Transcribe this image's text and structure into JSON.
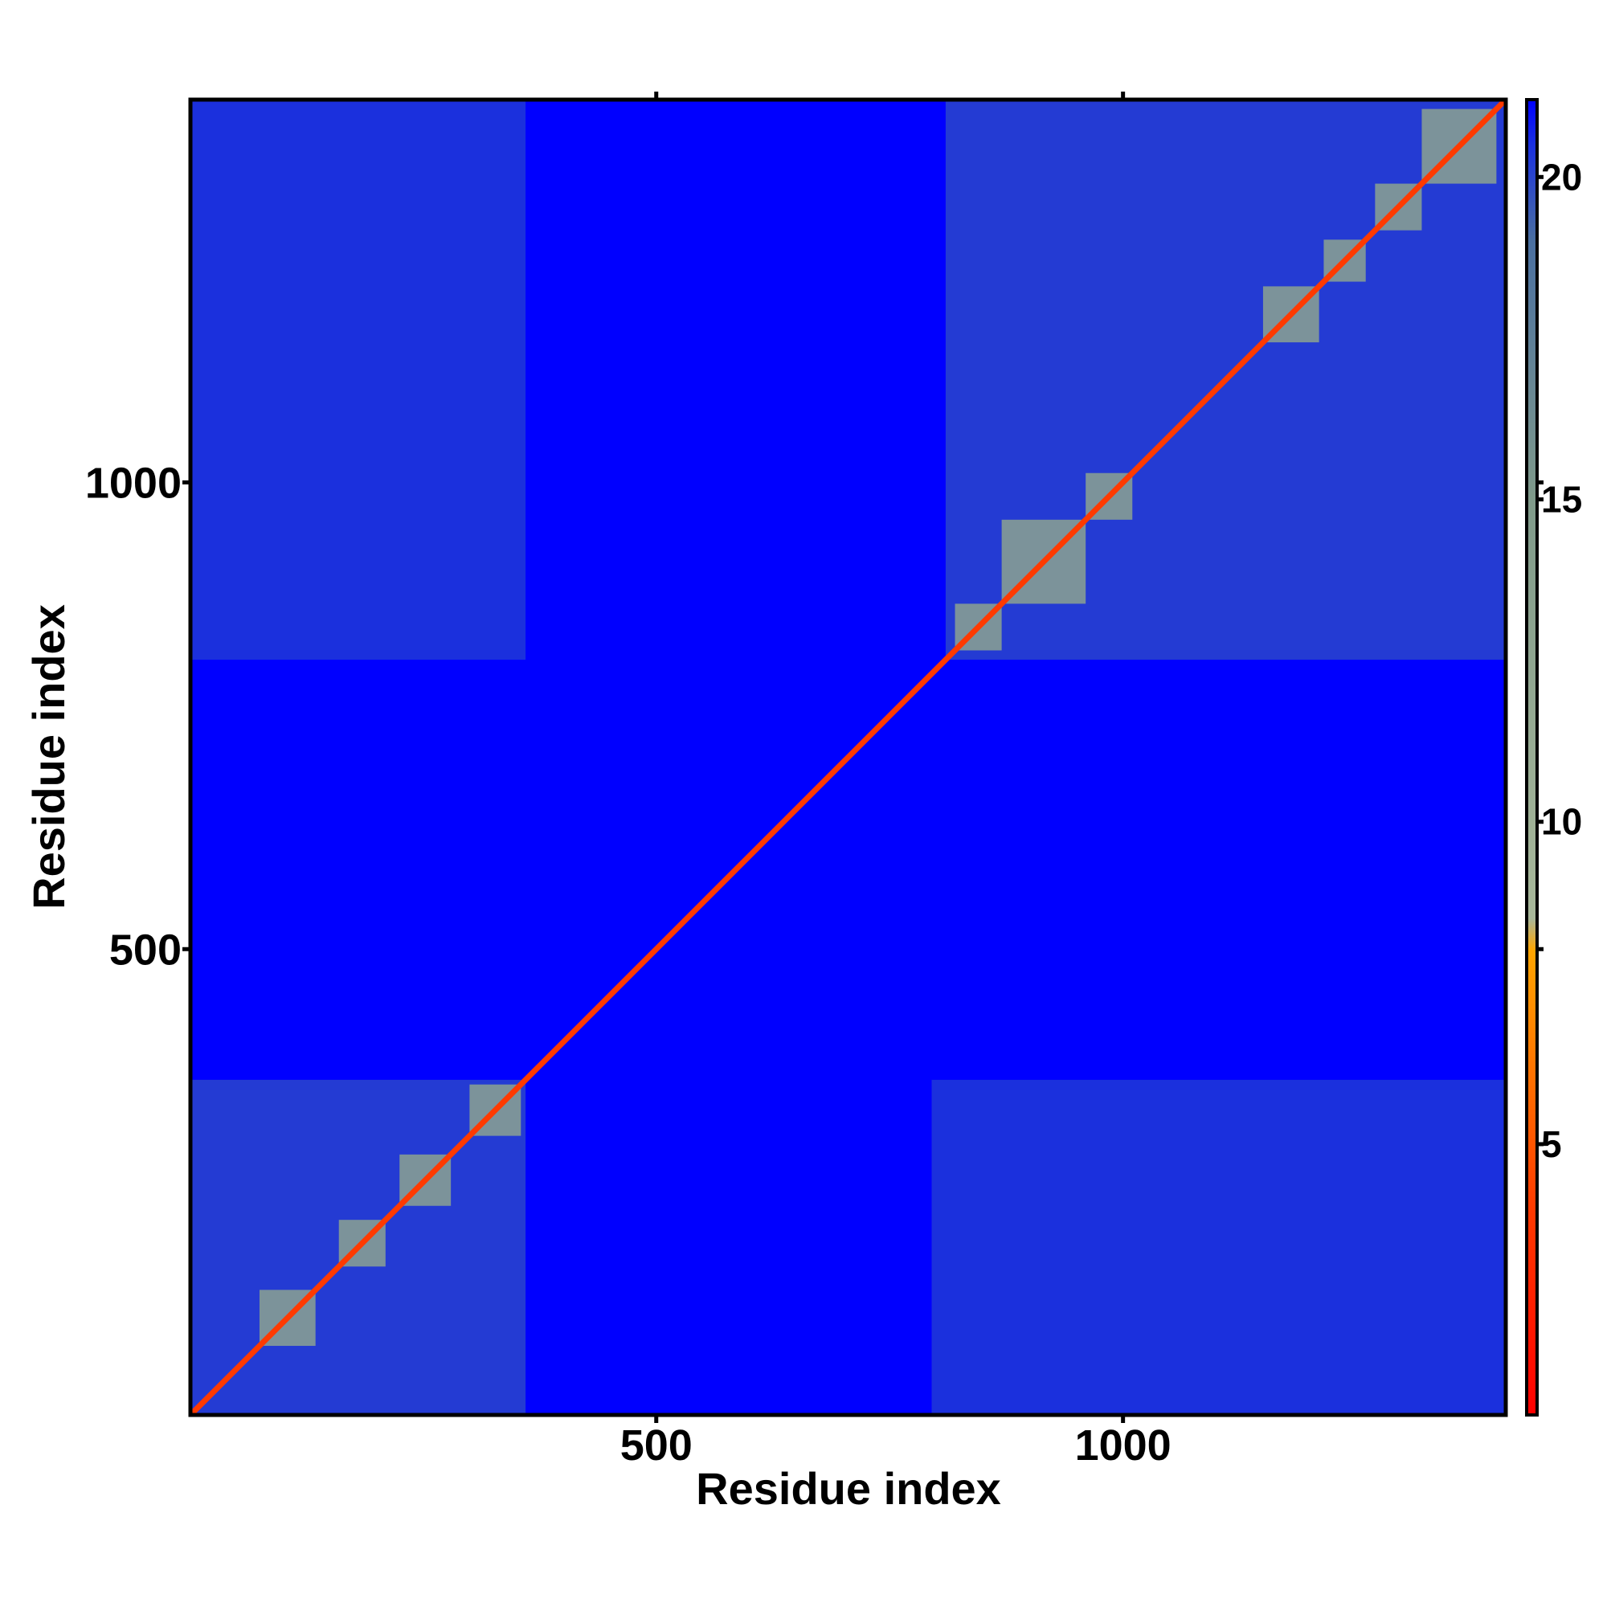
{
  "chart_data": {
    "type": "heatmap",
    "x_label": "Residue index",
    "y_label": "Residue index",
    "xlim": [
      1,
      1410
    ],
    "ylim": [
      1,
      1410
    ],
    "xticks": [
      500,
      1000
    ],
    "yticks": [
      500,
      1000
    ],
    "clim": [
      0.8,
      21.2
    ],
    "cticks": [
      5,
      10,
      15,
      20
    ],
    "colorscale": [
      {
        "value": 0.8,
        "color": "#ff0000"
      },
      {
        "value": 4,
        "color": "#ff3a00"
      },
      {
        "value": 8,
        "color": "#ffa500"
      },
      {
        "value": 8.5,
        "color": "#a8b89a"
      },
      {
        "value": 15,
        "color": "#7f9a8a"
      },
      {
        "value": 19,
        "color": "#4a6fa0"
      },
      {
        "value": 20.5,
        "color": "#1a30e0"
      },
      {
        "value": 21.2,
        "color": "#0000ff"
      }
    ],
    "background_value": 21.2,
    "cells": [
      {
        "x": [
          1,
          360
        ],
        "y": [
          1,
          360
        ],
        "value": 20
      },
      {
        "x": [
          810,
          1410
        ],
        "y": [
          810,
          1410
        ],
        "value": 20
      },
      {
        "x": [
          1,
          360
        ],
        "y": [
          810,
          1410
        ],
        "value": 20.3
      },
      {
        "x": [
          795,
          1410
        ],
        "y": [
          1,
          360
        ],
        "value": 20.3
      },
      {
        "x": [
          75,
          135
        ],
        "y": [
          75,
          135
        ],
        "value": 13
      },
      {
        "x": [
          160,
          210
        ],
        "y": [
          160,
          210
        ],
        "value": 13
      },
      {
        "x": [
          225,
          280
        ],
        "y": [
          225,
          280
        ],
        "value": 13
      },
      {
        "x": [
          300,
          355
        ],
        "y": [
          300,
          355
        ],
        "value": 13
      },
      {
        "x": [
          820,
          870
        ],
        "y": [
          820,
          870
        ],
        "value": 13
      },
      {
        "x": [
          870,
          960
        ],
        "y": [
          870,
          960
        ],
        "value": 13
      },
      {
        "x": [
          960,
          1010
        ],
        "y": [
          960,
          1010
        ],
        "value": 13
      },
      {
        "x": [
          1150,
          1210
        ],
        "y": [
          1150,
          1210
        ],
        "value": 13
      },
      {
        "x": [
          1215,
          1260
        ],
        "y": [
          1215,
          1260
        ],
        "value": 13
      },
      {
        "x": [
          1270,
          1320
        ],
        "y": [
          1270,
          1320
        ],
        "value": 13
      },
      {
        "x": [
          1320,
          1400
        ],
        "y": [
          1320,
          1400
        ],
        "value": 13
      }
    ],
    "diagonal": {
      "x": [
        1,
        1410
      ],
      "value": 4
    }
  }
}
